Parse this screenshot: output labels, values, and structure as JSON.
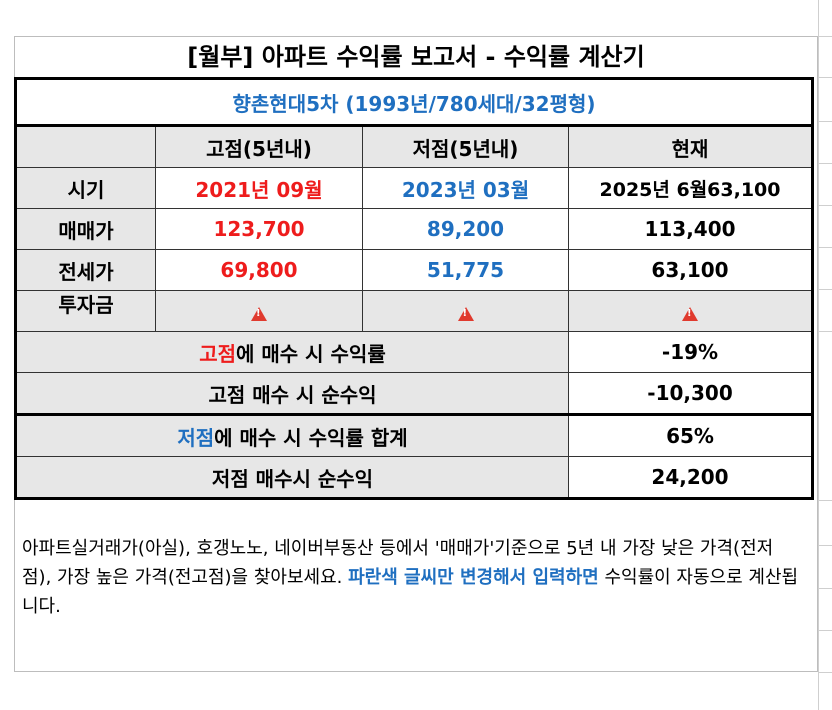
{
  "title": "[월부] 아파트 수익률 보고서 - 수익률 계산기",
  "subtitle": "향촌현대5차 (1993년/780세대/32평형)",
  "columns": [
    "",
    "고점(5년내)",
    "저점(5년내)",
    "현재"
  ],
  "rows": {
    "period": {
      "label": "시기",
      "high": "2021년 09월",
      "low": "2023년 03월",
      "current": "2025년 6월63,100"
    },
    "sale": {
      "label": "매매가",
      "high": "123,700",
      "low": "89,200",
      "current": "113,400"
    },
    "jeonse": {
      "label": "전세가",
      "high": "69,800",
      "low": "51,775",
      "current": "63,100"
    },
    "invest": {
      "label": "투자금"
    }
  },
  "summary": {
    "high_yield": {
      "label_highlight": "고점",
      "label_rest": "에 매수 시 수익률",
      "value": "-19%"
    },
    "high_net": {
      "label": "고점 매수 시 순수익",
      "value": "-10,300"
    },
    "low_yield": {
      "label_highlight": "저점",
      "label_rest": "에 매수 시 수익률 합계",
      "value": "65%"
    },
    "low_net": {
      "label": "저점 매수시 순수익",
      "value": "24,200"
    }
  },
  "note": {
    "part1": "아파트실거래가(아실), 호갱노노, 네이버부동산 등에서 '매매가'기준으로 5년 내 가장 낮은 가격(전저점), 가장 높은 가격(전고점)을 찾아보세요.",
    "highlight": "파란색 글씨만 변경해서 입력하면",
    "part2": " 수익률이 자동으로 계산됩니다."
  },
  "icons": {
    "invest_cell": "warning-icon"
  },
  "colors": {
    "high": "#ee1c1c",
    "low": "#1f6fc0",
    "header_bg": "#e7e7e7"
  }
}
